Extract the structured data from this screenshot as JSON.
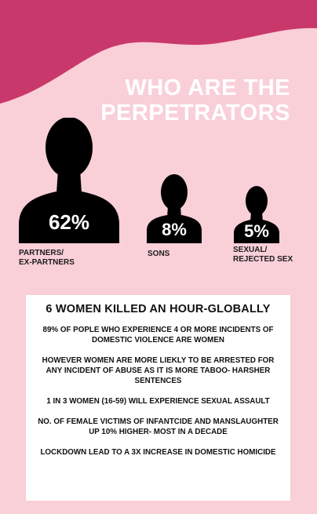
{
  "header": {
    "title_line1": "WHO ARE THE",
    "title_line2": "PERPETRATORS"
  },
  "colors": {
    "background": "#f9cfd8",
    "wave": "#c9386b",
    "silhouette": "#000000",
    "card": "#ffffff"
  },
  "perpetrators": [
    {
      "percent": "62%",
      "label_line1": "PARTNERS/",
      "label_line2": "EX-PARTNERS",
      "value": 62,
      "icon": "person-silhouette-icon"
    },
    {
      "percent": "8%",
      "label_line1": "SONS",
      "label_line2": "",
      "value": 8,
      "icon": "person-silhouette-icon"
    },
    {
      "percent": "5%",
      "label_line1": "SEXUAL/",
      "label_line2": "REJECTED SEX",
      "value": 5,
      "icon": "person-silhouette-icon"
    }
  ],
  "facts_card": {
    "heading": "6 WOMEN KILLED AN HOUR-GLOBALLY",
    "facts": [
      "89% OF POPLE WHO EXPERIENCE 4 OR MORE INCIDENTS OF DOMESTIC VIOLENCE ARE WOMEN",
      "HOWEVER WOMEN ARE MORE LIEKLY TO BE ARRESTED FOR ANY INCIDENT OF ABUSE AS IT IS MORE TABOO- HARSHER SENTENCES",
      "1 IN 3 WOMEN (16-59) WILL EXPERIENCE SEXUAL ASSAULT",
      "NO. OF FEMALE VICTIMS OF INFANTCIDE AND MANSLAUGHTER UP 10% HIGHER- MOST IN A DECADE",
      "LOCKDOWN LEAD TO A 3X INCREASE IN DOMESTIC HOMICIDE"
    ]
  }
}
